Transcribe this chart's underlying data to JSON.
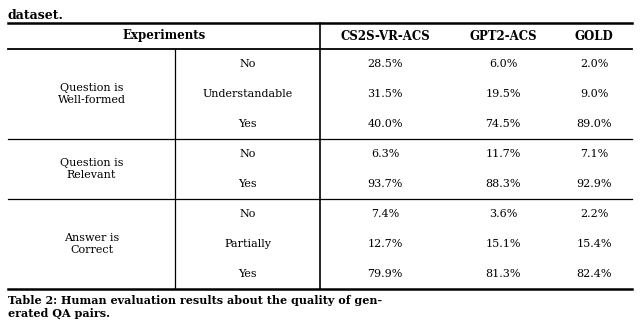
{
  "title_top": "dataset.",
  "caption": "Table 2: Human evaluation results about the quality of gen-\nerated QA pairs.",
  "col1_groups": [
    {
      "label": "Question is\nWell-formed",
      "rows": [
        "No",
        "Understandable",
        "Yes"
      ]
    },
    {
      "label": "Question is\nRelevant",
      "rows": [
        "No",
        "Yes"
      ]
    },
    {
      "label": "Answer is\nCorrect",
      "rows": [
        "No",
        "Partially",
        "Yes"
      ]
    }
  ],
  "data": [
    [
      "28.5%",
      "6.0%",
      "2.0%"
    ],
    [
      "31.5%",
      "19.5%",
      "9.0%"
    ],
    [
      "40.0%",
      "74.5%",
      "89.0%"
    ],
    [
      "6.3%",
      "11.7%",
      "7.1%"
    ],
    [
      "93.7%",
      "88.3%",
      "92.9%"
    ],
    [
      "7.4%",
      "3.6%",
      "2.2%"
    ],
    [
      "12.7%",
      "15.1%",
      "15.4%"
    ],
    [
      "79.9%",
      "81.3%",
      "82.4%"
    ]
  ],
  "col_headers": [
    "CS2S-VR-ACS",
    "GPT2-ACS",
    "GOLD"
  ],
  "background_color": "#ffffff",
  "font_size": 8.0,
  "header_font_size": 8.5,
  "caption_font_size": 8.0,
  "title_font_size": 9.0
}
